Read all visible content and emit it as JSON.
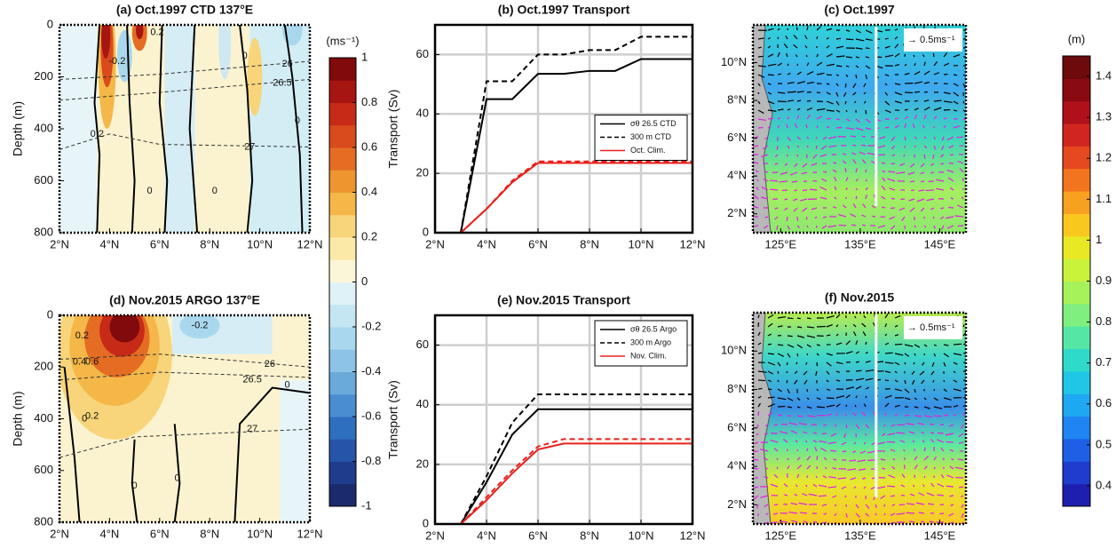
{
  "chart_data": [
    {
      "type": "contour",
      "title": "(a) Oct.1997 CTD 137°E",
      "y_label": "Depth (m)",
      "xlim": [
        2,
        12
      ],
      "ylim": [
        800,
        0
      ],
      "xticks": [
        {
          "value": 2,
          "label": "2°N"
        },
        {
          "value": 4,
          "label": "4°N"
        },
        {
          "value": 6,
          "label": "6°N"
        },
        {
          "value": 8,
          "label": "8°N"
        },
        {
          "value": 10,
          "label": "10°N"
        },
        {
          "value": 12,
          "label": "12°N"
        }
      ],
      "yticks": [
        0,
        200,
        400,
        600,
        800
      ],
      "annotations": [
        {
          "text": "26",
          "x": 11.1,
          "y": 150
        },
        {
          "text": "26.5",
          "x": 10.9,
          "y": 225
        },
        {
          "text": "27",
          "x": 9.6,
          "y": 470
        },
        {
          "text": "0.2",
          "x": 3.5,
          "y": 420
        },
        {
          "text": "-0.2",
          "x": 4.3,
          "y": 140
        },
        {
          "text": "0.2",
          "x": 5.9,
          "y": 30
        },
        {
          "text": "0",
          "x": 5.6,
          "y": 640
        },
        {
          "text": "0",
          "x": 8.2,
          "y": 640
        },
        {
          "text": "0",
          "x": 9.4,
          "y": 120
        },
        {
          "text": "0",
          "x": 11.5,
          "y": 370
        }
      ]
    },
    {
      "type": "line",
      "title": "(b) Oct.1997 Transport",
      "y_label": "Transport (Sv)",
      "xlim": [
        2,
        12
      ],
      "ylim": [
        0,
        70
      ],
      "xticks": [
        {
          "value": 2,
          "label": "2°N"
        },
        {
          "value": 4,
          "label": "4°N"
        },
        {
          "value": 6,
          "label": "6°N"
        },
        {
          "value": 8,
          "label": "8°N"
        },
        {
          "value": 10,
          "label": "10°N"
        },
        {
          "value": 12,
          "label": "12°N"
        }
      ],
      "yticks": [
        0,
        20,
        40,
        60
      ],
      "grid": true,
      "legend": "center right",
      "x": [
        3,
        4,
        5,
        6,
        7,
        8,
        9,
        10,
        11,
        12
      ],
      "series": [
        {
          "name": "σθ 26.5 CTD",
          "color": "#000000",
          "dash": false,
          "values": [
            0,
            45,
            45,
            53.5,
            53.5,
            54.5,
            54.5,
            58.5,
            58.5,
            58.5
          ]
        },
        {
          "name": "300 m CTD",
          "color": "#000000",
          "dash": true,
          "values": [
            0,
            51,
            51,
            60,
            60,
            61.5,
            61.5,
            66,
            66,
            66
          ]
        },
        {
          "name": "Oct. Clim.",
          "color": "#e8201c",
          "dash": false,
          "values": [
            0,
            8,
            17,
            23.5,
            23.5,
            23.5,
            23.5,
            23.5,
            23.5,
            23.5
          ]
        },
        {
          "color": "#e8201c",
          "dash": true,
          "values": [
            0,
            8,
            17.5,
            24,
            24,
            24,
            24,
            24,
            24,
            24
          ]
        }
      ]
    },
    {
      "type": "map",
      "title": "(c) Oct.1997",
      "xlim": [
        121.5,
        148.3
      ],
      "ylim": [
        1,
        12
      ],
      "xticks": [
        {
          "value": 125,
          "label": "125°E"
        },
        {
          "value": 135,
          "label": "135°E"
        },
        {
          "value": 145,
          "label": "145°E"
        }
      ],
      "yticks": [
        {
          "value": 2,
          "label": "2°N"
        },
        {
          "value": 4,
          "label": "4°N"
        },
        {
          "value": 6,
          "label": "6°N"
        },
        {
          "value": 8,
          "label": "8°N"
        },
        {
          "value": 10,
          "label": "10°N"
        }
      ],
      "annotation": "→ 0.5ms⁻¹",
      "section_lon": 137
    },
    {
      "type": "contour",
      "title": "(d) Nov.2015 ARGO 137°E",
      "y_label": "Depth (m)",
      "xlim": [
        2,
        12
      ],
      "ylim": [
        800,
        0
      ],
      "xticks": [
        {
          "value": 2,
          "label": "2°N"
        },
        {
          "value": 4,
          "label": "4°N"
        },
        {
          "value": 6,
          "label": "6°N"
        },
        {
          "value": 8,
          "label": "8°N"
        },
        {
          "value": 10,
          "label": "10°N"
        },
        {
          "value": 12,
          "label": "12°N"
        }
      ],
      "yticks": [
        0,
        200,
        400,
        600,
        800
      ],
      "annotations": [
        {
          "text": "26",
          "x": 10.4,
          "y": 190
        },
        {
          "text": "26.5",
          "x": 9.7,
          "y": 250
        },
        {
          "text": "27",
          "x": 9.7,
          "y": 440
        },
        {
          "text": "0.2",
          "x": 2.9,
          "y": 80
        },
        {
          "text": "0.4",
          "x": 2.8,
          "y": 180
        },
        {
          "text": "0.6",
          "x": 3.3,
          "y": 180
        },
        {
          "text": "0.2",
          "x": 3.3,
          "y": 390
        },
        {
          "text": "-0.2",
          "x": 7.6,
          "y": 40
        },
        {
          "text": "0",
          "x": 3,
          "y": 400
        },
        {
          "text": "0",
          "x": 5,
          "y": 660
        },
        {
          "text": "0",
          "x": 6.7,
          "y": 630
        },
        {
          "text": "0",
          "x": 11.1,
          "y": 270
        }
      ]
    },
    {
      "type": "line",
      "title": "(e) Nov.2015 Transport",
      "y_label": "Transport (Sv)",
      "xlim": [
        2,
        12
      ],
      "ylim": [
        0,
        70
      ],
      "xticks": [
        {
          "value": 2,
          "label": "2°N"
        },
        {
          "value": 4,
          "label": "4°N"
        },
        {
          "value": 6,
          "label": "6°N"
        },
        {
          "value": 8,
          "label": "8°N"
        },
        {
          "value": 10,
          "label": "10°N"
        },
        {
          "value": 12,
          "label": "12°N"
        }
      ],
      "yticks": [
        0,
        20,
        40,
        60
      ],
      "grid": true,
      "legend": "upper right",
      "x": [
        3,
        4,
        5,
        6,
        7,
        8,
        9,
        10,
        11,
        12
      ],
      "series": [
        {
          "name": "σθ 26.5 Argo",
          "color": "#000000",
          "dash": false,
          "values": [
            0,
            14,
            30,
            38.5,
            38.5,
            38.5,
            38.5,
            38.5,
            38.5,
            38.5
          ]
        },
        {
          "name": "300 m Argo",
          "color": "#000000",
          "dash": true,
          "values": [
            0,
            16,
            34,
            43.5,
            43.5,
            43.5,
            43.5,
            43.5,
            43.5,
            43.5
          ]
        },
        {
          "name": "Nov. Clim.",
          "color": "#e8201c",
          "dash": false,
          "values": [
            0,
            8,
            17,
            25,
            27,
            27,
            27,
            27,
            27,
            27
          ]
        },
        {
          "color": "#e8201c",
          "dash": true,
          "values": [
            0,
            9,
            18,
            26,
            28.5,
            28.5,
            28.5,
            28.5,
            28.5,
            28.5
          ]
        }
      ]
    },
    {
      "type": "map",
      "title": "(f) Nov.2015",
      "xlim": [
        121.5,
        148.3
      ],
      "ylim": [
        1,
        12
      ],
      "xticks": [
        {
          "value": 125,
          "label": "125°E"
        },
        {
          "value": 135,
          "label": "135°E"
        },
        {
          "value": 145,
          "label": "145°E"
        }
      ],
      "yticks": [
        {
          "value": 2,
          "label": "2°N"
        },
        {
          "value": 4,
          "label": "4°N"
        },
        {
          "value": 6,
          "label": "6°N"
        },
        {
          "value": 8,
          "label": "8°N"
        },
        {
          "value": 10,
          "label": "10°N"
        }
      ],
      "annotation": "→ 0.5ms⁻¹",
      "section_lon": 137
    },
    {
      "type": "colorbar",
      "label": "(ms⁻¹)",
      "ylim": [
        -1,
        1
      ],
      "yticks": [
        -1,
        -0.8,
        -0.6,
        -0.4,
        -0.2,
        0,
        0.2,
        0.4,
        0.6,
        0.8,
        1
      ],
      "colors": [
        "#1a2a6c",
        "#1f3c8c",
        "#2554a8",
        "#2f6fbf",
        "#4a8dd0",
        "#6aaadb",
        "#8cc3e6",
        "#a9d8ee",
        "#c4e6f3",
        "#dff2f7",
        "#fcf6d8",
        "#fbe9a8",
        "#f8d57a",
        "#f4b748",
        "#ee9530",
        "#e46d23",
        "#d94a1c",
        "#c72b17",
        "#a71512",
        "#800a0c"
      ]
    },
    {
      "type": "colorbar",
      "label": "(m)",
      "ylim": [
        0.35,
        1.45
      ],
      "yticks": [
        0.4,
        0.5,
        0.6,
        0.7,
        0.8,
        0.9,
        1,
        1.1,
        1.2,
        1.3,
        1.4
      ],
      "colors": [
        "#1f1faf",
        "#1f3ccf",
        "#1f5fe6",
        "#1f85f2",
        "#1fa8f2",
        "#1fc6e6",
        "#2fdacb",
        "#55e6a6",
        "#7fef80",
        "#a6f25a",
        "#c9f23a",
        "#e9e824",
        "#f8c81f",
        "#f8a01f",
        "#f3741f",
        "#e6481f",
        "#d1261f",
        "#b0101a",
        "#8a0a12",
        "#6c0a0c"
      ]
    }
  ]
}
